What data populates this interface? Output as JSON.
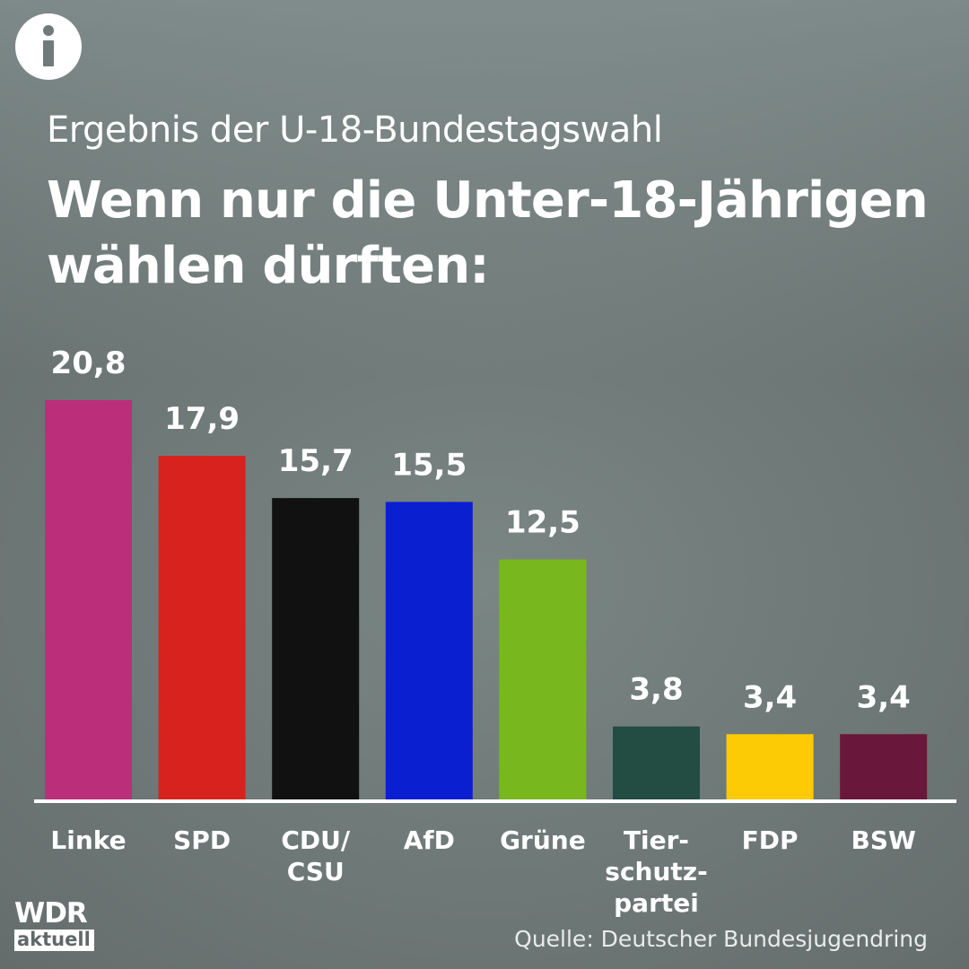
{
  "header": {
    "info_icon": "info-icon",
    "subtitle": "Ergebnis der U-18-Bundestagswahl",
    "title_line1": "Wenn nur die Unter-18-Jährigen",
    "title_line2": "wählen dürften:"
  },
  "footer": {
    "logo_line1": "WDR",
    "logo_line2": "aktuell",
    "source": "Quelle: Deutscher Bundesjugendring"
  },
  "chart_data": {
    "type": "bar",
    "title": "Wenn nur die Unter-18-Jährigen wählen dürften:",
    "xlabel": "",
    "ylabel": "",
    "ylim": [
      0,
      20.8
    ],
    "grid": false,
    "categories": [
      {
        "label": "Linke",
        "lines": [
          "Linke"
        ],
        "value": 20.8,
        "display": "20,8",
        "color": "#bb2e7a"
      },
      {
        "label": "SPD",
        "lines": [
          "SPD"
        ],
        "value": 17.9,
        "display": "17,9",
        "color": "#d8221e"
      },
      {
        "label": "CDU/CSU",
        "lines": [
          "CDU/",
          "CSU"
        ],
        "value": 15.7,
        "display": "15,7",
        "color": "#111111"
      },
      {
        "label": "AfD",
        "lines": [
          "AfD"
        ],
        "value": 15.5,
        "display": "15,5",
        "color": "#0a1fd0"
      },
      {
        "label": "Grüne",
        "lines": [
          "Grüne"
        ],
        "value": 12.5,
        "display": "12,5",
        "color": "#78b81e"
      },
      {
        "label": "Tierschutzpartei",
        "lines": [
          "Tier-",
          "schutz-",
          "partei"
        ],
        "value": 3.8,
        "display": "3,8",
        "color": "#234c43"
      },
      {
        "label": "FDP",
        "lines": [
          "FDP"
        ],
        "value": 3.4,
        "display": "3,4",
        "color": "#fdcb05"
      },
      {
        "label": "BSW",
        "lines": [
          "BSW"
        ],
        "value": 3.4,
        "display": "3,4",
        "color": "#6a173c"
      }
    ],
    "baseline_color": "#ffffff"
  }
}
